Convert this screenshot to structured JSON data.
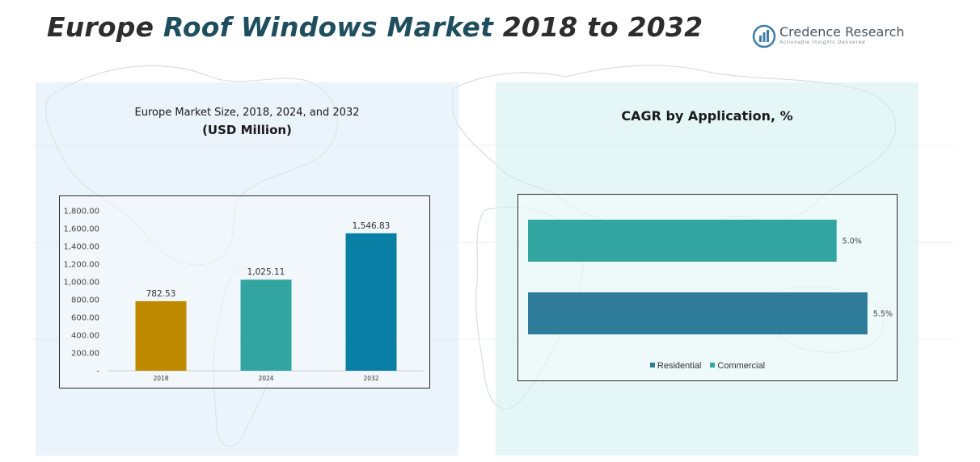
{
  "header": {
    "title_part1": "Europe ",
    "title_highlight": "Roof Windows Market",
    "title_part2": " 2018 to 2032"
  },
  "logo": {
    "name": "Credence Research",
    "tagline": "Actionable Insights Delivered",
    "icon": "bar-chart-circle-icon"
  },
  "chart_data": [
    {
      "type": "bar",
      "title": "Europe Market Size, 2018, 2024, and 2032",
      "subtitle": "(USD Million)",
      "categories": [
        "2018",
        "2024",
        "2032"
      ],
      "values": [
        782.53,
        1025.11,
        1546.83
      ],
      "value_labels": [
        "782.53",
        "1,025.11",
        "1,546.83"
      ],
      "colors": [
        "#c08a00",
        "#33a5a1",
        "#0a7fa6"
      ],
      "ylim": [
        0,
        1800
      ],
      "yticks": [
        0,
        200,
        400,
        600,
        800,
        1000,
        1200,
        1400,
        1600,
        1800
      ],
      "ytick_labels": [
        "-",
        "200.00",
        "400.00",
        "600.00",
        "800.00",
        "1,000.00",
        "1,200.00",
        "1,400.00",
        "1,600.00",
        "1,800.00"
      ],
      "xlabel": "",
      "ylabel": "",
      "grid": false
    },
    {
      "type": "bar",
      "orientation": "horizontal",
      "title": "CAGR by Application, %",
      "series": [
        {
          "name": "Commercial",
          "value": 5.0,
          "label": "5.0%",
          "color": "#33a5a1"
        },
        {
          "name": "Residential",
          "value": 5.5,
          "label": "5.5%",
          "color": "#2e7b9a"
        }
      ],
      "xlim": [
        0,
        6.0
      ],
      "legend": [
        "Residential",
        "Commercial"
      ],
      "legend_position": "bottom",
      "grid": false
    }
  ]
}
